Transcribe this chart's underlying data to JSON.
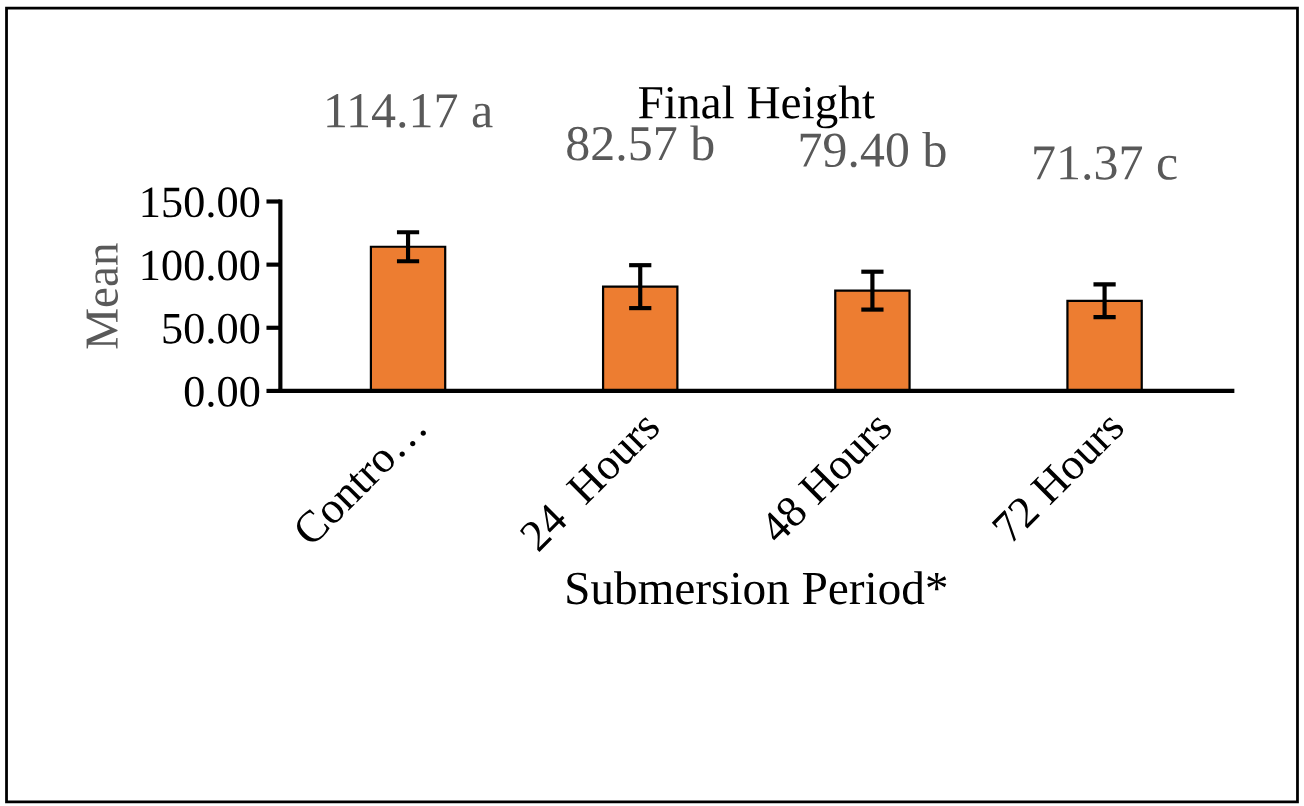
{
  "chart_data": {
    "type": "bar",
    "title": "Final Height",
    "xlabel": "Submersion Period*",
    "ylabel": "Mean",
    "categories": [
      "Contro…",
      "24  Hours",
      "48 Hours",
      "72 Hours"
    ],
    "values": [
      114.17,
      82.57,
      79.4,
      71.37
    ],
    "value_labels": [
      "114.17 a",
      "82.57 b",
      "79.40 b",
      "71.37 c"
    ],
    "errors": [
      11.5,
      17,
      15,
      13
    ],
    "color": "#ed7d31",
    "ylim": [
      0,
      150
    ],
    "yticks": [
      {
        "value": 0,
        "label": "0.00"
      },
      {
        "value": 50,
        "label": "50.00"
      },
      {
        "value": 100,
        "label": "100.00"
      },
      {
        "value": 150,
        "label": "150.00"
      }
    ],
    "grid": false,
    "legend": false
  }
}
